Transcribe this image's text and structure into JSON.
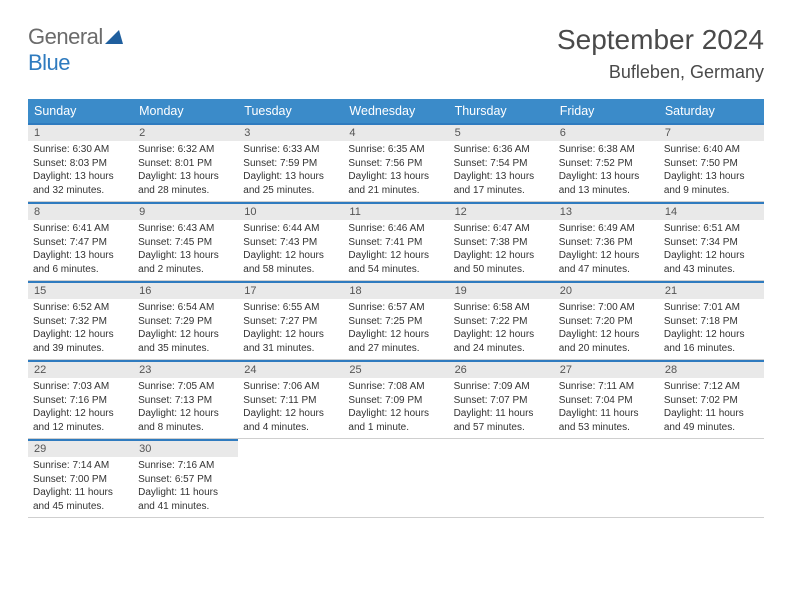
{
  "logo": {
    "text_gray": "General",
    "text_blue": "Blue"
  },
  "title": "September 2024",
  "location": "Bufleben, Germany",
  "colors": {
    "header_blue": "#3b8bc9",
    "row_border_blue": "#2f7bbf",
    "daystrip_gray": "#e9e9e9",
    "text_gray": "#4a4a4a"
  },
  "day_headers": [
    "Sunday",
    "Monday",
    "Tuesday",
    "Wednesday",
    "Thursday",
    "Friday",
    "Saturday"
  ],
  "weeks": [
    [
      {
        "n": "1",
        "sr": "6:30 AM",
        "ss": "8:03 PM",
        "dl": "13 hours and 32 minutes."
      },
      {
        "n": "2",
        "sr": "6:32 AM",
        "ss": "8:01 PM",
        "dl": "13 hours and 28 minutes."
      },
      {
        "n": "3",
        "sr": "6:33 AM",
        "ss": "7:59 PM",
        "dl": "13 hours and 25 minutes."
      },
      {
        "n": "4",
        "sr": "6:35 AM",
        "ss": "7:56 PM",
        "dl": "13 hours and 21 minutes."
      },
      {
        "n": "5",
        "sr": "6:36 AM",
        "ss": "7:54 PM",
        "dl": "13 hours and 17 minutes."
      },
      {
        "n": "6",
        "sr": "6:38 AM",
        "ss": "7:52 PM",
        "dl": "13 hours and 13 minutes."
      },
      {
        "n": "7",
        "sr": "6:40 AM",
        "ss": "7:50 PM",
        "dl": "13 hours and 9 minutes."
      }
    ],
    [
      {
        "n": "8",
        "sr": "6:41 AM",
        "ss": "7:47 PM",
        "dl": "13 hours and 6 minutes."
      },
      {
        "n": "9",
        "sr": "6:43 AM",
        "ss": "7:45 PM",
        "dl": "13 hours and 2 minutes."
      },
      {
        "n": "10",
        "sr": "6:44 AM",
        "ss": "7:43 PM",
        "dl": "12 hours and 58 minutes."
      },
      {
        "n": "11",
        "sr": "6:46 AM",
        "ss": "7:41 PM",
        "dl": "12 hours and 54 minutes."
      },
      {
        "n": "12",
        "sr": "6:47 AM",
        "ss": "7:38 PM",
        "dl": "12 hours and 50 minutes."
      },
      {
        "n": "13",
        "sr": "6:49 AM",
        "ss": "7:36 PM",
        "dl": "12 hours and 47 minutes."
      },
      {
        "n": "14",
        "sr": "6:51 AM",
        "ss": "7:34 PM",
        "dl": "12 hours and 43 minutes."
      }
    ],
    [
      {
        "n": "15",
        "sr": "6:52 AM",
        "ss": "7:32 PM",
        "dl": "12 hours and 39 minutes."
      },
      {
        "n": "16",
        "sr": "6:54 AM",
        "ss": "7:29 PM",
        "dl": "12 hours and 35 minutes."
      },
      {
        "n": "17",
        "sr": "6:55 AM",
        "ss": "7:27 PM",
        "dl": "12 hours and 31 minutes."
      },
      {
        "n": "18",
        "sr": "6:57 AM",
        "ss": "7:25 PM",
        "dl": "12 hours and 27 minutes."
      },
      {
        "n": "19",
        "sr": "6:58 AM",
        "ss": "7:22 PM",
        "dl": "12 hours and 24 minutes."
      },
      {
        "n": "20",
        "sr": "7:00 AM",
        "ss": "7:20 PM",
        "dl": "12 hours and 20 minutes."
      },
      {
        "n": "21",
        "sr": "7:01 AM",
        "ss": "7:18 PM",
        "dl": "12 hours and 16 minutes."
      }
    ],
    [
      {
        "n": "22",
        "sr": "7:03 AM",
        "ss": "7:16 PM",
        "dl": "12 hours and 12 minutes."
      },
      {
        "n": "23",
        "sr": "7:05 AM",
        "ss": "7:13 PM",
        "dl": "12 hours and 8 minutes."
      },
      {
        "n": "24",
        "sr": "7:06 AM",
        "ss": "7:11 PM",
        "dl": "12 hours and 4 minutes."
      },
      {
        "n": "25",
        "sr": "7:08 AM",
        "ss": "7:09 PM",
        "dl": "12 hours and 1 minute."
      },
      {
        "n": "26",
        "sr": "7:09 AM",
        "ss": "7:07 PM",
        "dl": "11 hours and 57 minutes."
      },
      {
        "n": "27",
        "sr": "7:11 AM",
        "ss": "7:04 PM",
        "dl": "11 hours and 53 minutes."
      },
      {
        "n": "28",
        "sr": "7:12 AM",
        "ss": "7:02 PM",
        "dl": "11 hours and 49 minutes."
      }
    ],
    [
      {
        "n": "29",
        "sr": "7:14 AM",
        "ss": "7:00 PM",
        "dl": "11 hours and 45 minutes."
      },
      {
        "n": "30",
        "sr": "7:16 AM",
        "ss": "6:57 PM",
        "dl": "11 hours and 41 minutes."
      },
      null,
      null,
      null,
      null,
      null
    ]
  ],
  "labels": {
    "sunrise_prefix": "Sunrise: ",
    "sunset_prefix": "Sunset: ",
    "daylight_prefix": "Daylight: "
  }
}
